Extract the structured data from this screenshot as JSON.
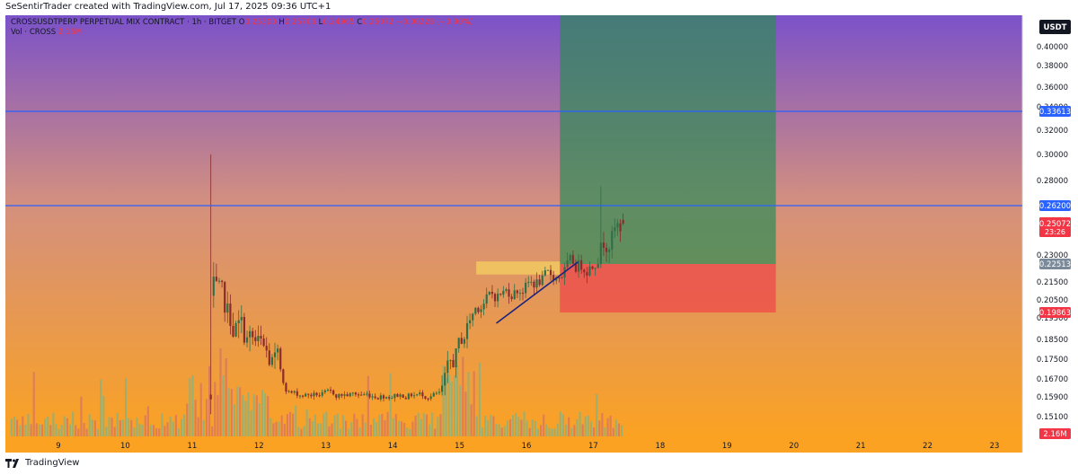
{
  "header": {
    "credit": "SeSentirTrader created with TradingView.com, Jul 17, 2025 09:36 UTC+1"
  },
  "legend": {
    "symbol": "CROSSUSDTPERP PERPETUAL MIX CONTRACT · 1h · BITGET",
    "open_label": "O",
    "open": "0.25300",
    "high_label": "H",
    "high": "0.25706",
    "low_label": "L",
    "low": "0.24965",
    "close_label": "C",
    "close": "0.25072",
    "change": "−0.00228 (−0.90%)",
    "volume_label": "Vol · CROSS",
    "volume_value": "2.16M"
  },
  "footer": {
    "brand": "TradingView"
  },
  "colors": {
    "bg_top": "#7b52c9",
    "bg_mid": "#d4907e",
    "bg_bottom": "#fba222",
    "up": "#2f6e48",
    "down": "#8b2a2a",
    "hline": "#2962ff",
    "target_zone": "#2e8b57",
    "stop_zone": "#f23645",
    "supply_zone": "#f5d060",
    "trendline": "#1a237e",
    "price_badge": "#f23645",
    "vol_up": "#8fb07a",
    "vol_down": "#d8785e"
  },
  "chart_data": {
    "type": "candlestick",
    "currency_label": "USDT",
    "y_ticks": [
      "0.40000",
      "0.38000",
      "0.36000",
      "0.34000",
      "0.32000",
      "0.30000",
      "0.28000",
      "0.23000",
      "0.21500",
      "0.20500",
      "0.19500",
      "0.18500",
      "0.17500",
      "0.16700",
      "0.15900",
      "0.15100"
    ],
    "x_ticks": [
      "9",
      "10",
      "11",
      "12",
      "13",
      "14",
      "15",
      "16",
      "17",
      "18",
      "19",
      "20",
      "21",
      "22",
      "23"
    ],
    "horizontal_lines": [
      {
        "price": 0.33613,
        "label": "0.33613"
      },
      {
        "price": 0.262,
        "label": "0.26200"
      }
    ],
    "position": {
      "entry": 0.22513,
      "entry_label": "0.22513",
      "stop": 0.19863,
      "stop_label": "0.19863",
      "target": 0.425
    },
    "current_price": "0.25072",
    "countdown": "23:26",
    "volume_last": "2.16M",
    "supply_zone": {
      "top": 0.2265,
      "bottom": 0.2192
    },
    "trendline": {
      "from_day": 15.55,
      "from_price": 0.1925,
      "to_day": 16.77,
      "to_price": 0.2262
    }
  }
}
